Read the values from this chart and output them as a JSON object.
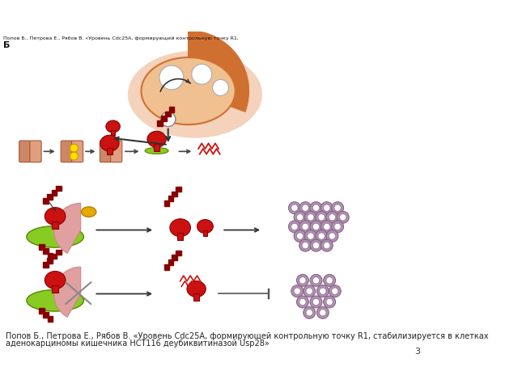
{
  "title_top": "Попов Б., Петрова Е., Рябов В. «Уровень Cdc25A, формирующей контрольную точку R1,",
  "caption_line1": "Попов Б., Петрова Е., Рябов В. «Уровень Cdc25A, формирующей контрольную точку R1, стабилизируется в клетках",
  "caption_line2": "аденокарциномы кишечника НСТ116 деубиквитиназой Usp28»",
  "page_number": "3",
  "bg_color": "#ffffff",
  "label_B": "Б",
  "light_orange_cell": "#f0c090",
  "orange_ring": "#d07030",
  "peach_outer": "#f0c0a0",
  "salmon1": "#d08060",
  "salmon2": "#e09878",
  "green_platform": "#88cc22",
  "red_main": "#cc1111",
  "dark_red_stem": "#991111",
  "yellow_dot": "#ffdd00",
  "gold_oval": "#e8aa00",
  "pink_rb": "#e0a0a0",
  "mauve_cell": "#b090b0",
  "mauve_inner": "#d0b0d0",
  "caption_color": "#222222"
}
